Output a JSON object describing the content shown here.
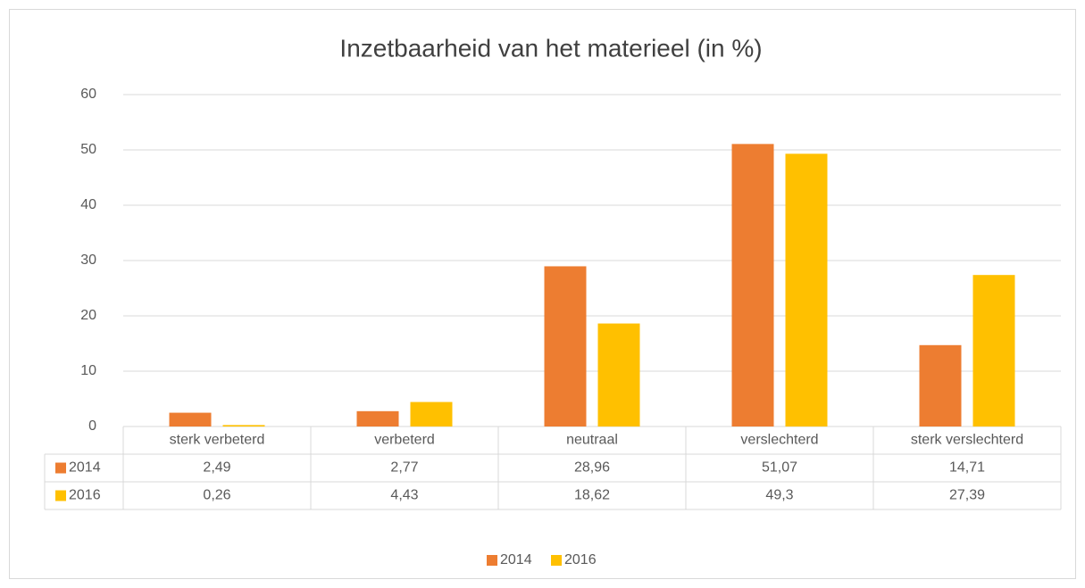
{
  "chart_data": {
    "type": "bar",
    "title": "Inzetbaarheid van het materieel (in %)",
    "categories": [
      "sterk verbeterd",
      "verbeterd",
      "neutraal",
      "verslechterd",
      "sterk verslechterd"
    ],
    "series": [
      {
        "name": "2014",
        "color": "#ed7d31",
        "values": [
          2.49,
          2.77,
          28.96,
          51.07,
          14.71
        ],
        "value_labels": [
          "2,49",
          "2,77",
          "28,96",
          "51,07",
          "14,71"
        ]
      },
      {
        "name": "2016",
        "color": "#ffc000",
        "values": [
          0.26,
          4.43,
          18.62,
          49.3,
          27.39
        ],
        "value_labels": [
          "0,26",
          "4,43",
          "18,62",
          "49,3",
          "27,39"
        ]
      }
    ],
    "ylim": [
      0,
      60
    ],
    "yticks": [
      0,
      10,
      20,
      30,
      40,
      50,
      60
    ],
    "grid": true,
    "legend": "bottom"
  }
}
